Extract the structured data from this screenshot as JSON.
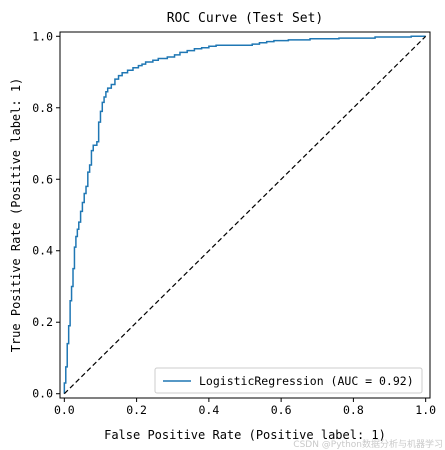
{
  "chart_data": {
    "type": "line",
    "title": "ROC Curve (Test Set)",
    "xlabel": "False Positive Rate (Positive label: 1)",
    "ylabel": "True Positive Rate (Positive label: 1)",
    "xlim": [
      0,
      1
    ],
    "ylim": [
      0,
      1
    ],
    "xticks": [
      "0.0",
      "0.2",
      "0.4",
      "0.6",
      "0.8",
      "1.0"
    ],
    "yticks": [
      "0.0",
      "0.2",
      "0.4",
      "0.6",
      "0.8",
      "1.0"
    ],
    "grid": false,
    "legend_position": "lower-right",
    "series": [
      {
        "name": "LogisticRegression (AUC = 0.92)",
        "color": "#1f77b4",
        "style": "solid",
        "points": [
          [
            0.0,
            0.0
          ],
          [
            0.0,
            0.03
          ],
          [
            0.004,
            0.03
          ],
          [
            0.004,
            0.075
          ],
          [
            0.008,
            0.075
          ],
          [
            0.008,
            0.14
          ],
          [
            0.012,
            0.14
          ],
          [
            0.012,
            0.19
          ],
          [
            0.016,
            0.19
          ],
          [
            0.016,
            0.26
          ],
          [
            0.02,
            0.26
          ],
          [
            0.02,
            0.3
          ],
          [
            0.024,
            0.3
          ],
          [
            0.024,
            0.35
          ],
          [
            0.028,
            0.35
          ],
          [
            0.028,
            0.41
          ],
          [
            0.032,
            0.41
          ],
          [
            0.032,
            0.44
          ],
          [
            0.036,
            0.44
          ],
          [
            0.036,
            0.46
          ],
          [
            0.04,
            0.46
          ],
          [
            0.04,
            0.48
          ],
          [
            0.045,
            0.48
          ],
          [
            0.045,
            0.51
          ],
          [
            0.05,
            0.51
          ],
          [
            0.05,
            0.535
          ],
          [
            0.055,
            0.535
          ],
          [
            0.055,
            0.56
          ],
          [
            0.06,
            0.56
          ],
          [
            0.06,
            0.58
          ],
          [
            0.065,
            0.58
          ],
          [
            0.065,
            0.62
          ],
          [
            0.07,
            0.62
          ],
          [
            0.07,
            0.64
          ],
          [
            0.075,
            0.64
          ],
          [
            0.075,
            0.68
          ],
          [
            0.08,
            0.68
          ],
          [
            0.08,
            0.695
          ],
          [
            0.09,
            0.695
          ],
          [
            0.09,
            0.705
          ],
          [
            0.095,
            0.705
          ],
          [
            0.095,
            0.76
          ],
          [
            0.1,
            0.76
          ],
          [
            0.1,
            0.79
          ],
          [
            0.105,
            0.79
          ],
          [
            0.105,
            0.815
          ],
          [
            0.11,
            0.815
          ],
          [
            0.11,
            0.83
          ],
          [
            0.115,
            0.83
          ],
          [
            0.115,
            0.845
          ],
          [
            0.12,
            0.845
          ],
          [
            0.12,
            0.855
          ],
          [
            0.13,
            0.855
          ],
          [
            0.13,
            0.865
          ],
          [
            0.14,
            0.865
          ],
          [
            0.14,
            0.88
          ],
          [
            0.15,
            0.88
          ],
          [
            0.15,
            0.89
          ],
          [
            0.16,
            0.89
          ],
          [
            0.16,
            0.898
          ],
          [
            0.175,
            0.898
          ],
          [
            0.175,
            0.905
          ],
          [
            0.19,
            0.905
          ],
          [
            0.19,
            0.912
          ],
          [
            0.205,
            0.912
          ],
          [
            0.205,
            0.918
          ],
          [
            0.215,
            0.918
          ],
          [
            0.215,
            0.922
          ],
          [
            0.225,
            0.922
          ],
          [
            0.225,
            0.928
          ],
          [
            0.245,
            0.928
          ],
          [
            0.245,
            0.933
          ],
          [
            0.26,
            0.933
          ],
          [
            0.26,
            0.938
          ],
          [
            0.285,
            0.938
          ],
          [
            0.285,
            0.942
          ],
          [
            0.305,
            0.942
          ],
          [
            0.305,
            0.948
          ],
          [
            0.32,
            0.948
          ],
          [
            0.32,
            0.955
          ],
          [
            0.34,
            0.955
          ],
          [
            0.34,
            0.96
          ],
          [
            0.36,
            0.96
          ],
          [
            0.36,
            0.965
          ],
          [
            0.38,
            0.965
          ],
          [
            0.38,
            0.968
          ],
          [
            0.4,
            0.968
          ],
          [
            0.4,
            0.972
          ],
          [
            0.42,
            0.972
          ],
          [
            0.42,
            0.975
          ],
          [
            0.52,
            0.975
          ],
          [
            0.52,
            0.978
          ],
          [
            0.54,
            0.978
          ],
          [
            0.54,
            0.982
          ],
          [
            0.56,
            0.982
          ],
          [
            0.56,
            0.985
          ],
          [
            0.58,
            0.985
          ],
          [
            0.58,
            0.988
          ],
          [
            0.62,
            0.988
          ],
          [
            0.62,
            0.99
          ],
          [
            0.68,
            0.99
          ],
          [
            0.68,
            0.993
          ],
          [
            0.76,
            0.993
          ],
          [
            0.76,
            0.995
          ],
          [
            0.86,
            0.995
          ],
          [
            0.86,
            0.998
          ],
          [
            0.96,
            0.998
          ],
          [
            0.96,
            1.0
          ],
          [
            1.0,
            1.0
          ]
        ]
      },
      {
        "name": "",
        "color": "#000000",
        "style": "dashed",
        "points": [
          [
            0,
            0
          ],
          [
            1,
            1
          ]
        ]
      }
    ]
  }
}
